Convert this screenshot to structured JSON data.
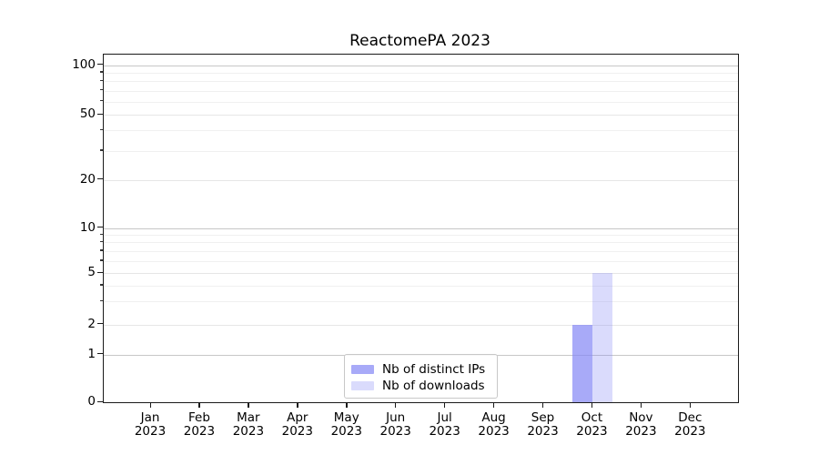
{
  "chart_data": {
    "type": "bar",
    "title": "ReactomePA 2023",
    "yscale": "symlog",
    "ylim": [
      0,
      115
    ],
    "yticks": [
      0,
      1,
      2,
      5,
      10,
      20,
      50,
      100
    ],
    "minor_yticks": [
      3,
      4,
      6,
      7,
      8,
      9,
      30,
      40,
      60,
      70,
      80,
      90
    ],
    "x_tick_months": [
      "Jan",
      "Feb",
      "Mar",
      "Apr",
      "May",
      "Jun",
      "Jul",
      "Aug",
      "Sep",
      "Oct",
      "Nov",
      "Dec"
    ],
    "x_tick_year": "2023",
    "categories": [
      "Jan 2023",
      "Feb 2023",
      "Mar 2023",
      "Apr 2023",
      "May 2023",
      "Jun 2023",
      "Jul 2023",
      "Aug 2023",
      "Sep 2023",
      "Oct 2023",
      "Nov 2023",
      "Dec 2023"
    ],
    "series": [
      {
        "name": "Nb of distinct IPs",
        "color": "rgba(134,137,245,0.72)",
        "values": [
          0,
          0,
          0,
          0,
          0,
          0,
          0,
          0,
          0,
          2,
          0,
          0
        ]
      },
      {
        "name": "Nb of downloads",
        "color": "rgba(134,137,245,0.30)",
        "values": [
          0,
          0,
          0,
          0,
          0,
          0,
          0,
          0,
          0,
          5,
          0,
          0
        ]
      }
    ],
    "legend": {
      "position": "lower center",
      "entries": [
        "Nb of distinct IPs",
        "Nb of downloads"
      ]
    },
    "grid": {
      "horizontal": true,
      "vertical": false
    },
    "colors": {
      "bar_distinct_ips": "#a9abf5",
      "bar_downloads": "#dbdcfa",
      "decade_gridline": "#c7c7c7",
      "mid_gridline": "#e6e6e6",
      "minor_gridline": "#f0f0f0",
      "spine": "#1a1a1a",
      "text": "#000000",
      "background": "#ffffff"
    }
  }
}
